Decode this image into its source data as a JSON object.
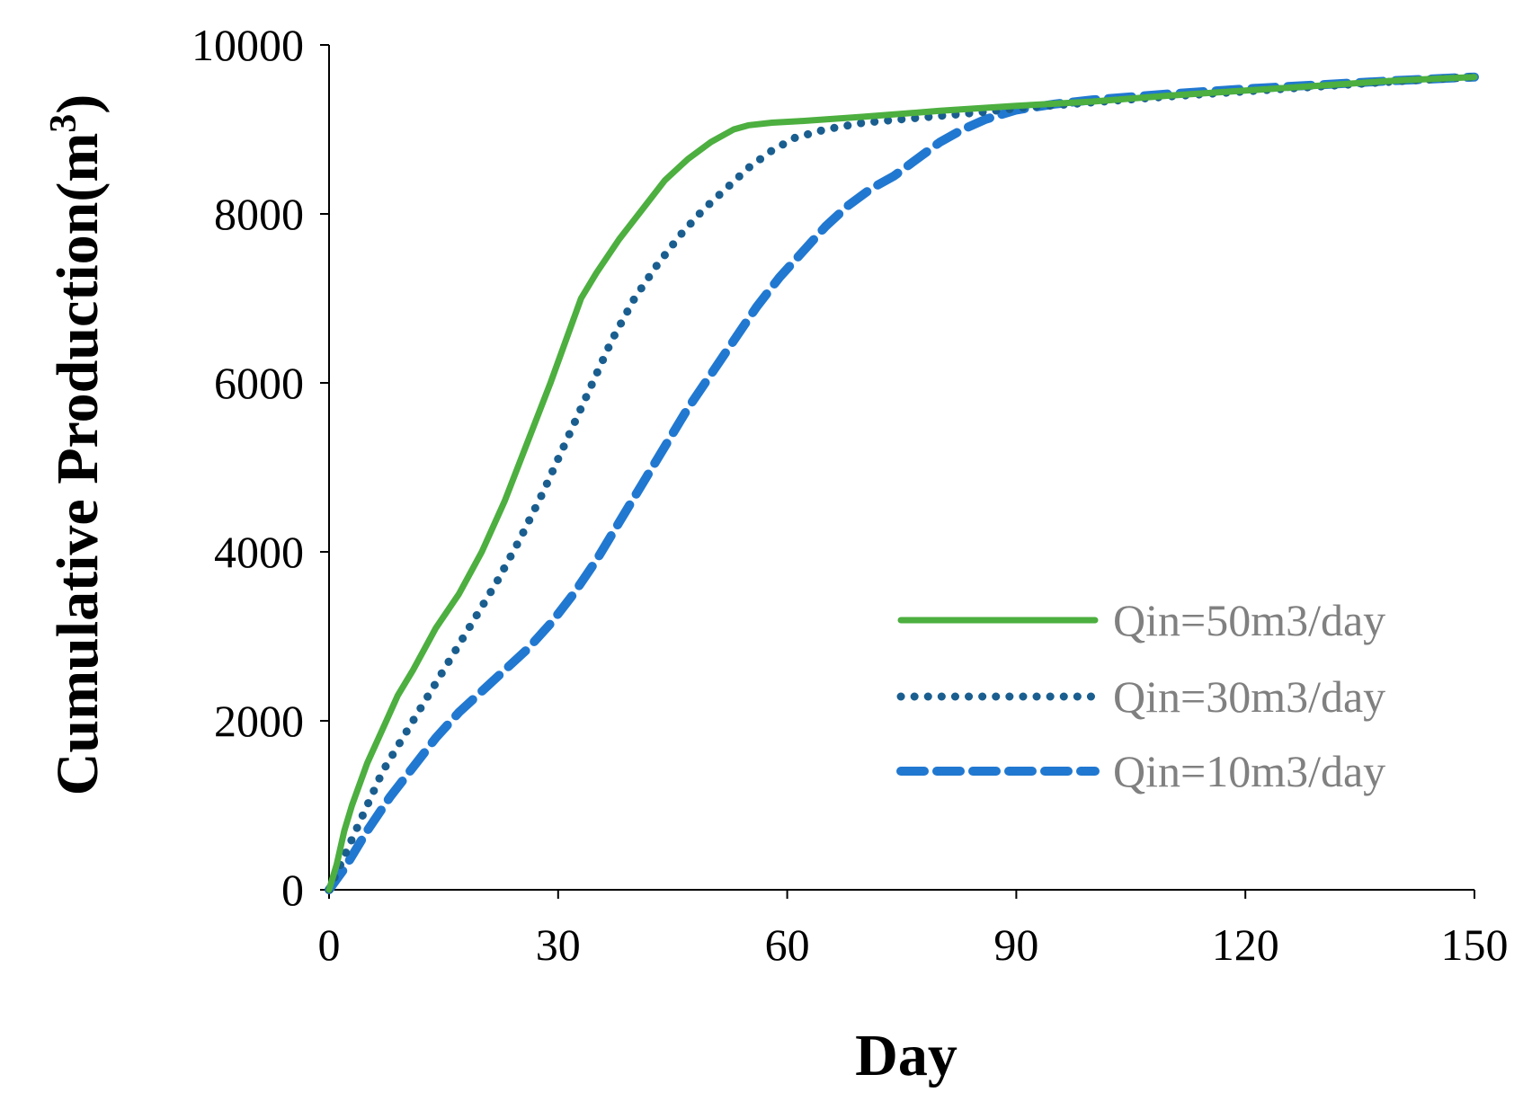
{
  "chart_data": {
    "type": "line",
    "title": "",
    "xlabel": "Day",
    "ylabel": "Cumulative Production(m",
    "ylabel_superscript": "3",
    "ylabel_close": ")",
    "xlim": [
      0,
      150
    ],
    "ylim": [
      0,
      10000
    ],
    "xticks": [
      0,
      30,
      60,
      90,
      120,
      150
    ],
    "yticks": [
      0,
      2000,
      4000,
      6000,
      8000,
      10000
    ],
    "xtick_labels": [
      "0",
      "30",
      "60",
      "90",
      "120",
      "150"
    ],
    "ytick_labels": [
      "0",
      "2000",
      "4000",
      "6000",
      "8000",
      "10000"
    ],
    "grid": false,
    "legend_position": "right",
    "series": [
      {
        "name": "Qin=50m3/day",
        "color": "#4caf3f",
        "style": "solid",
        "x": [
          0,
          1,
          2,
          3,
          5,
          7,
          9,
          11,
          14,
          17,
          20,
          23,
          26,
          29,
          31,
          33,
          35,
          38,
          41,
          44,
          47,
          50,
          53,
          55,
          58,
          62,
          70,
          80,
          90,
          100,
          110,
          120,
          130,
          140,
          150
        ],
        "y": [
          0,
          300,
          700,
          1000,
          1500,
          1900,
          2300,
          2600,
          3100,
          3500,
          4000,
          4600,
          5300,
          6000,
          6500,
          7000,
          7300,
          7700,
          8050,
          8400,
          8650,
          8850,
          9000,
          9050,
          9080,
          9100,
          9150,
          9220,
          9280,
          9330,
          9400,
          9460,
          9520,
          9580,
          9620
        ]
      },
      {
        "name": "Qin=30m3/day",
        "color": "#1a5e8f",
        "style": "dotted",
        "x": [
          0,
          1,
          3,
          5,
          7,
          10,
          13,
          16,
          19,
          22,
          25,
          28,
          31,
          34,
          37,
          40,
          43,
          46,
          49,
          52,
          55,
          58,
          61,
          65,
          70,
          75,
          80,
          85,
          90,
          100,
          110,
          120,
          130,
          140,
          150
        ],
        "y": [
          0,
          200,
          600,
          1000,
          1400,
          1850,
          2300,
          2750,
          3200,
          3650,
          4150,
          4700,
          5300,
          5900,
          6500,
          7000,
          7400,
          7750,
          8050,
          8300,
          8550,
          8750,
          8900,
          9000,
          9080,
          9120,
          9160,
          9200,
          9250,
          9320,
          9390,
          9450,
          9510,
          9570,
          9620
        ]
      },
      {
        "name": "Qin=10m3/day",
        "color": "#2178d0",
        "style": "dashed",
        "x": [
          0,
          2,
          5,
          8,
          11,
          14,
          17,
          20,
          23,
          26,
          29,
          32,
          35,
          38,
          41,
          44,
          47,
          50,
          53,
          56,
          59,
          62,
          65,
          68,
          71,
          74,
          77,
          80,
          83,
          86,
          90,
          95,
          100,
          110,
          120,
          130,
          140,
          150
        ],
        "y": [
          0,
          250,
          700,
          1100,
          1450,
          1800,
          2100,
          2350,
          2600,
          2850,
          3150,
          3500,
          3900,
          4350,
          4800,
          5250,
          5700,
          6100,
          6500,
          6900,
          7250,
          7550,
          7850,
          8100,
          8300,
          8450,
          8650,
          8850,
          9000,
          9120,
          9230,
          9300,
          9350,
          9420,
          9480,
          9530,
          9580,
          9620
        ]
      }
    ]
  }
}
